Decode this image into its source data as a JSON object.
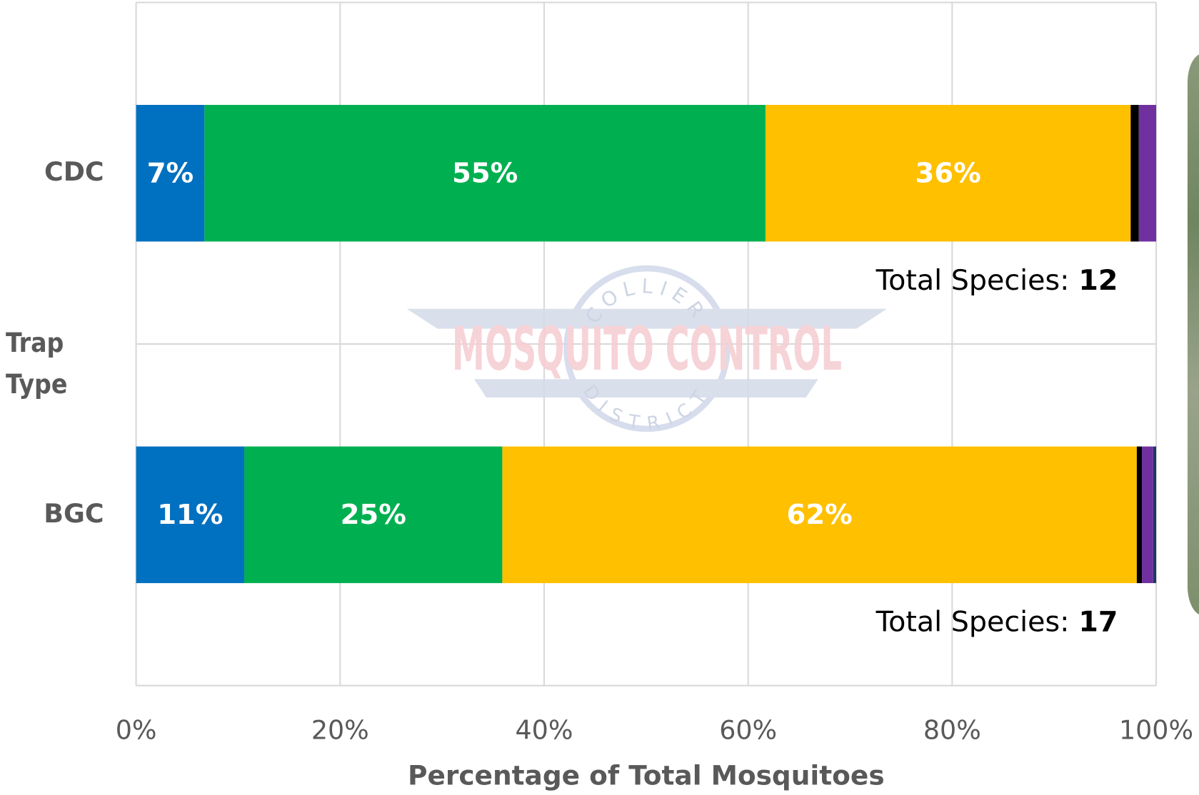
{
  "chart_data": {
    "type": "bar",
    "orientation": "horizontal",
    "stacked": true,
    "categories": [
      "CDC",
      "BGC"
    ],
    "series": [
      {
        "color": "#0070c0",
        "values": [
          6.7,
          10.6
        ],
        "value_labels": [
          "7%",
          "11%"
        ]
      },
      {
        "color": "#00b050",
        "values": [
          55.0,
          25.3
        ],
        "value_labels": [
          "55%",
          "25%"
        ]
      },
      {
        "color": "#ffc000",
        "values": [
          35.8,
          62.2
        ],
        "value_labels": [
          "36%",
          "62%"
        ]
      },
      {
        "color": "#000000",
        "values": [
          0.8,
          0.5
        ]
      },
      {
        "color": "#7030a0",
        "values": [
          1.7,
          1.1
        ]
      },
      {
        "color": "#1f3864",
        "values": [
          0,
          0.3
        ]
      }
    ],
    "xlim": [
      0,
      100
    ],
    "xticks": [
      {
        "value": 0,
        "label": "0%"
      },
      {
        "value": 20,
        "label": "20%"
      },
      {
        "value": 40,
        "label": "40%"
      },
      {
        "value": 60,
        "label": "60%"
      },
      {
        "value": 80,
        "label": "80%"
      },
      {
        "value": 100,
        "label": "100%"
      }
    ],
    "grid": true,
    "x_label": "Percentage of Total Mosquitoes",
    "y_label": "Trap Type",
    "annotations": [
      {
        "label": "Total Species:",
        "count": 12
      },
      {
        "label": "Total Species:",
        "count": 17
      }
    ]
  },
  "watermark": {
    "top": "COLLIER",
    "middle": "MOSQUITO CONTROL",
    "bottom": "DISTRICT"
  }
}
